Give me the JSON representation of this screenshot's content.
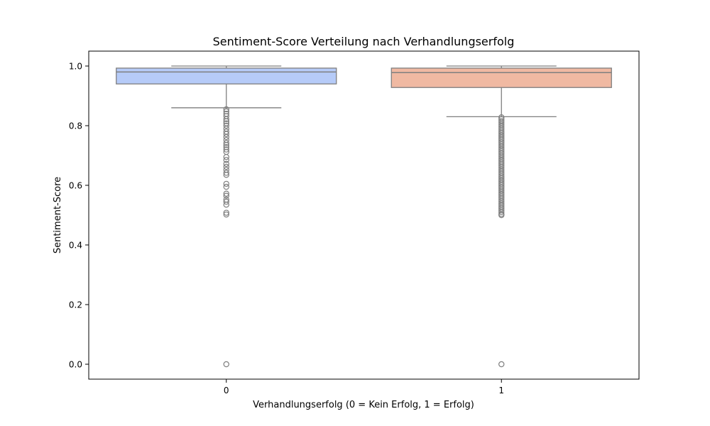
{
  "chart_data": {
    "type": "box",
    "title": "Sentiment-Score Verteilung nach Verhandlungserfolg",
    "xlabel": "Verhandlungserfolg (0 = Kein Erfolg, 1 = Erfolg)",
    "ylabel": "Sentiment-Score",
    "categories": [
      "0",
      "1"
    ],
    "ylim": [
      -0.05,
      1.05
    ],
    "yticks": [
      "0.0",
      "0.2",
      "0.4",
      "0.6",
      "0.8",
      "1.0"
    ],
    "grid": false,
    "boxes": [
      {
        "category": "0",
        "whisker_low": 0.86,
        "q1": 0.94,
        "median": 0.98,
        "q3": 0.993,
        "whisker_high": 1.0,
        "outliers": [
          0.855,
          0.848,
          0.84,
          0.832,
          0.822,
          0.815,
          0.808,
          0.8,
          0.79,
          0.78,
          0.772,
          0.762,
          0.752,
          0.742,
          0.735,
          0.728,
          0.72,
          0.712,
          0.695,
          0.685,
          0.672,
          0.662,
          0.652,
          0.642,
          0.635,
          0.605,
          0.595,
          0.572,
          0.565,
          0.552,
          0.545,
          0.535,
          0.508,
          0.502,
          0.0
        ]
      },
      {
        "category": "1",
        "whisker_low": 0.83,
        "q1": 0.928,
        "median": 0.978,
        "q3": 0.993,
        "whisker_high": 1.0,
        "outliers": [
          0.828,
          0.822,
          0.816,
          0.81,
          0.804,
          0.798,
          0.792,
          0.786,
          0.78,
          0.774,
          0.768,
          0.762,
          0.756,
          0.75,
          0.744,
          0.738,
          0.732,
          0.726,
          0.72,
          0.714,
          0.708,
          0.702,
          0.696,
          0.69,
          0.684,
          0.678,
          0.672,
          0.666,
          0.66,
          0.654,
          0.648,
          0.642,
          0.636,
          0.63,
          0.624,
          0.618,
          0.612,
          0.606,
          0.6,
          0.594,
          0.588,
          0.582,
          0.576,
          0.57,
          0.564,
          0.558,
          0.552,
          0.546,
          0.54,
          0.534,
          0.528,
          0.522,
          0.516,
          0.51,
          0.504,
          0.5,
          0.0
        ]
      }
    ],
    "colors": {
      "box_0": "#b6cbf8",
      "box_1": "#f0b9a2",
      "lines": "#7f7f7f",
      "axis": "#000000"
    }
  }
}
